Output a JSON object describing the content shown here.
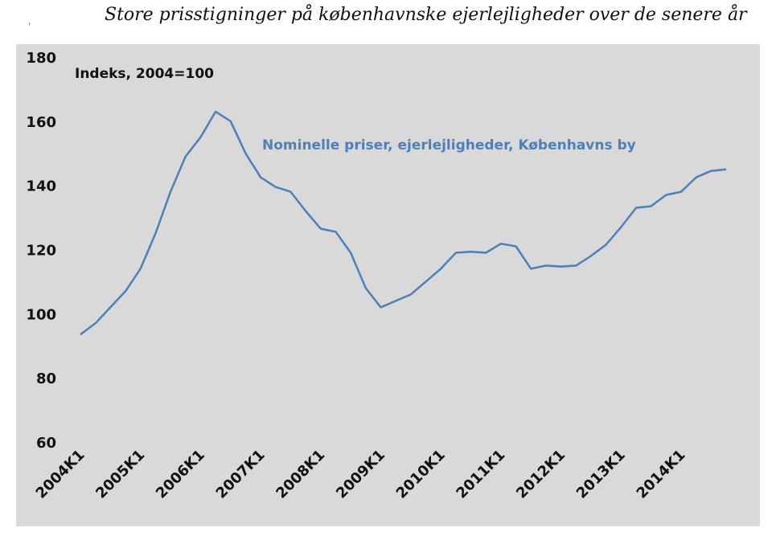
{
  "title": "Store prisstigninger på københavnske ejerlejligheder over de senere år",
  "corner_mark": "‚",
  "colors": {
    "plot_background": "#d9d9d9",
    "line": "#4f7fb8",
    "annotation": "#4f7fb8",
    "text": "#111111"
  },
  "chart_data": {
    "type": "line",
    "title": "Store prisstigninger på københavnske ejerlejligheder over de senere år",
    "ylabel_annotation": "Indeks, 2004=100",
    "series_label": "Nominelle priser, ejerlejligheder, Københavns by",
    "ylim": [
      60,
      180
    ],
    "yticks": [
      60,
      80,
      100,
      120,
      140,
      160,
      180
    ],
    "grid": false,
    "xtick_labels": [
      "2004K1",
      "2005K1",
      "2006K1",
      "2007K1",
      "2008K1",
      "2009K1",
      "2010K1",
      "2011K1",
      "2012K1",
      "2013K1",
      "2014K1"
    ],
    "xtick_positions": [
      0,
      4,
      8,
      12,
      16,
      20,
      24,
      28,
      32,
      36,
      40
    ],
    "x_count": 44,
    "series": [
      {
        "name": "Nominelle priser, ejerlejligheder, Københavns by",
        "values": [
          93.5,
          97,
          102,
          107,
          114,
          125,
          138,
          149,
          155,
          163,
          160,
          150,
          142.5,
          139.5,
          138,
          132,
          126.5,
          125.5,
          119,
          108,
          102,
          104,
          106,
          110,
          114,
          119,
          119.3,
          119,
          121.8,
          121,
          114,
          115,
          114.7,
          115,
          118,
          121.5,
          127,
          133,
          133.5,
          137,
          138,
          142.5,
          144.5,
          145
        ]
      }
    ]
  }
}
